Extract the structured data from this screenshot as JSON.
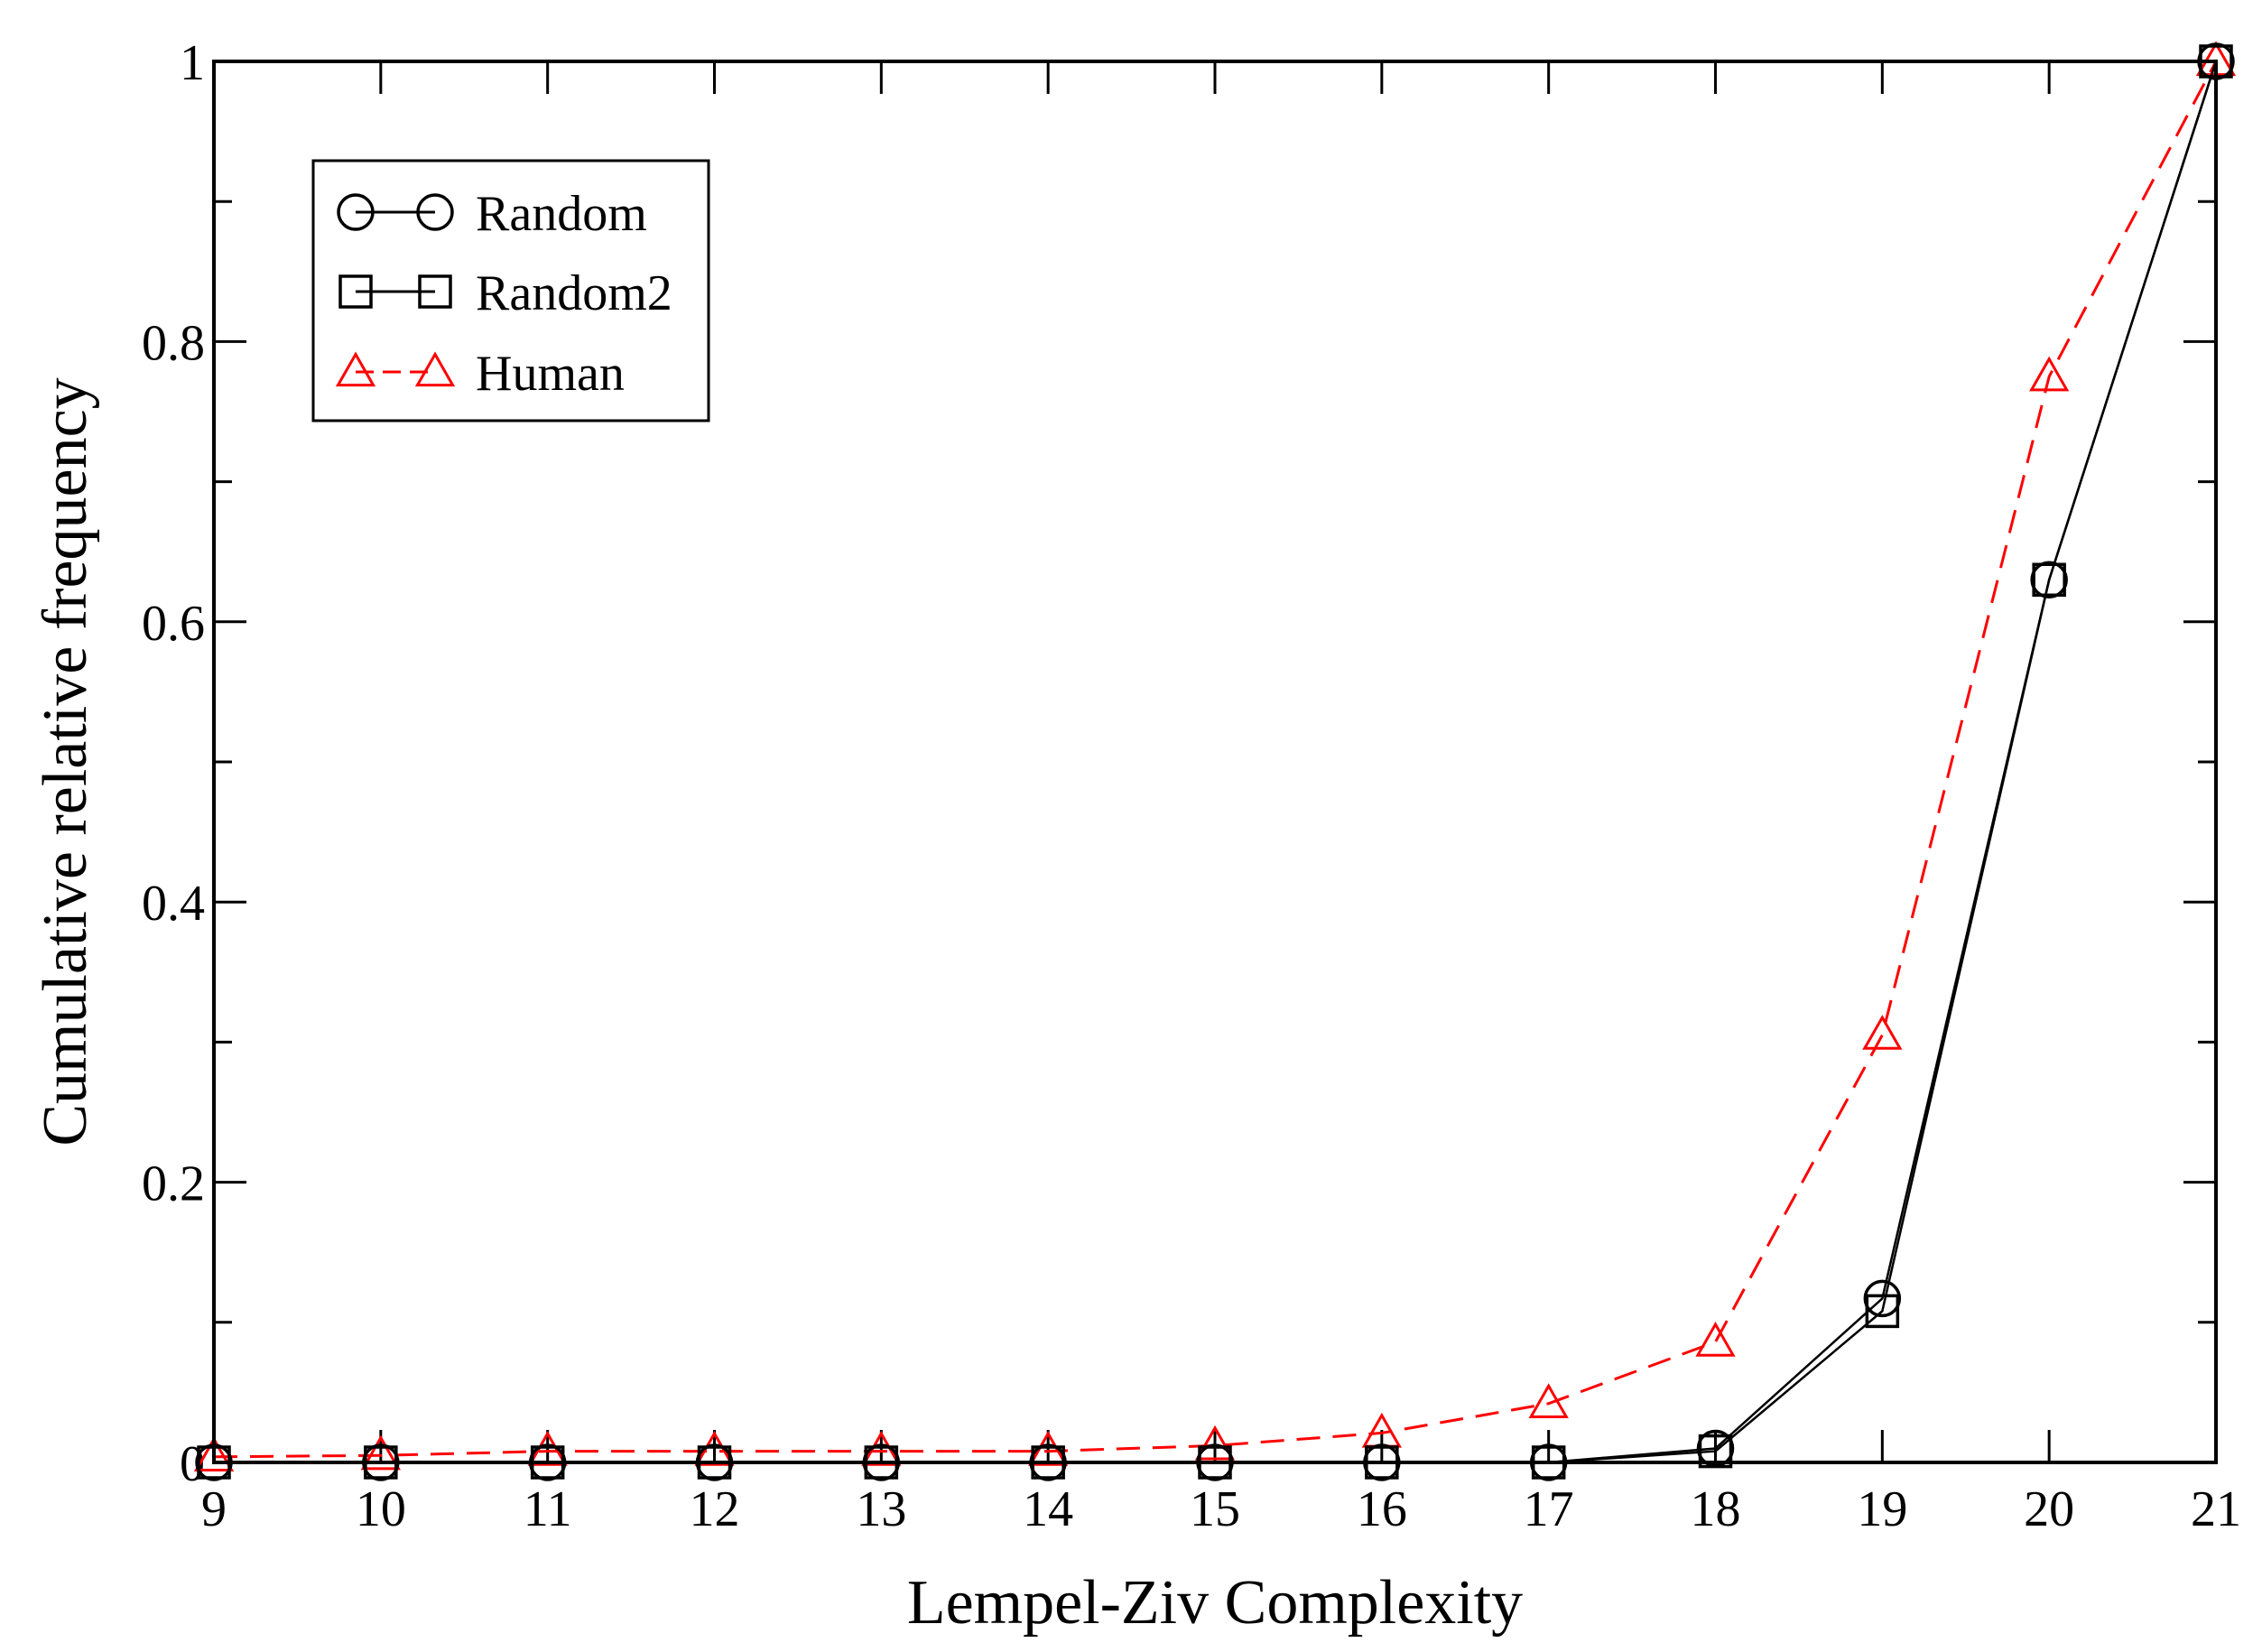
{
  "chart_data": {
    "type": "line",
    "title": "",
    "xlabel": "Lempel-Ziv Complexity",
    "ylabel": "Cumulative relative frequency",
    "x": [
      9,
      10,
      11,
      12,
      13,
      14,
      15,
      16,
      17,
      18,
      19,
      20,
      21
    ],
    "xlim": [
      9,
      21
    ],
    "ylim": [
      0,
      1
    ],
    "x_ticks": [
      "9",
      "10",
      "11",
      "12",
      "13",
      "14",
      "15",
      "16",
      "17",
      "18",
      "19",
      "20",
      "21"
    ],
    "y_ticks": [
      {
        "value": 0,
        "label": "0"
      },
      {
        "value": 0.2,
        "label": "0.2"
      },
      {
        "value": 0.4,
        "label": "0.4"
      },
      {
        "value": 0.6,
        "label": "0.6"
      },
      {
        "value": 0.8,
        "label": "0.8"
      },
      {
        "value": 1,
        "label": "1"
      }
    ],
    "y_minor_step": 0.1,
    "grid": false,
    "legend_position": "top-left",
    "series": [
      {
        "name": "Random",
        "marker": "circle",
        "line_style": "solid",
        "color": "#000000",
        "values": [
          0,
          0,
          0,
          0,
          0,
          0,
          0,
          0,
          0,
          0.01,
          0.117,
          0.63,
          1.0
        ]
      },
      {
        "name": "Random2",
        "marker": "square",
        "line_style": "solid",
        "color": "#000000",
        "values": [
          0,
          0,
          0,
          0,
          0,
          0,
          0,
          0,
          0,
          0.008,
          0.108,
          0.63,
          1.0
        ]
      },
      {
        "name": "Human",
        "marker": "triangle",
        "line_style": "dashed",
        "color": "#ff0000",
        "values": [
          0.004,
          0.005,
          0.008,
          0.008,
          0.008,
          0.008,
          0.012,
          0.021,
          0.042,
          0.086,
          0.305,
          0.775,
          1.0
        ]
      }
    ]
  }
}
